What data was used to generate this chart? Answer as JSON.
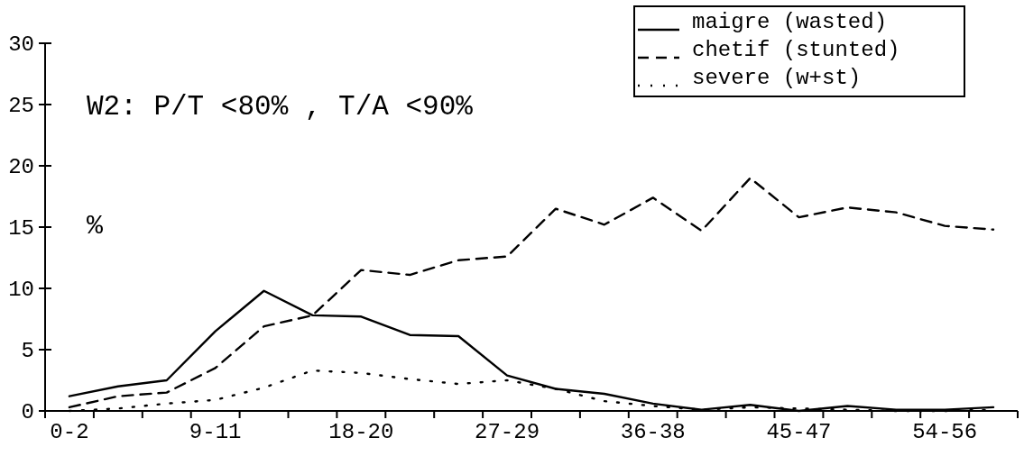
{
  "chart_data": {
    "type": "line",
    "ylabel": "%",
    "annotations": [
      "W2: P/T <80% , T/A <90%"
    ],
    "categories": [
      "0-2",
      null,
      null,
      "9-11",
      null,
      null,
      "18-20",
      null,
      null,
      "27-29",
      null,
      null,
      "36-38",
      null,
      null,
      "45-47",
      null,
      null,
      "54-56",
      null
    ],
    "series": [
      {
        "name": "maigre (wasted)",
        "color": "#000000",
        "line_style": "solid",
        "values": [
          1.2,
          2.0,
          2.5,
          6.5,
          9.8,
          7.8,
          7.7,
          6.2,
          6.1,
          2.9,
          1.8,
          1.4,
          0.6,
          0.1,
          0.5,
          0.0,
          0.4,
          0.1,
          0.1,
          0.3
        ]
      },
      {
        "name": "chetif (stunted)",
        "color": "#000000",
        "line_style": "dashed",
        "values": [
          0.3,
          1.2,
          1.5,
          3.5,
          6.9,
          7.8,
          11.5,
          11.1,
          12.3,
          12.6,
          16.5,
          15.2,
          17.4,
          14.7,
          19.0,
          15.8,
          16.6,
          16.2,
          15.1,
          14.8
        ]
      },
      {
        "name": "severe (w+st)",
        "color": "#000000",
        "line_style": "dotted",
        "values": [
          0.0,
          0.2,
          0.6,
          0.9,
          1.9,
          3.3,
          3.1,
          2.6,
          2.2,
          2.5,
          1.8,
          0.8,
          0.4,
          0.1,
          0.3,
          0.2,
          0.1,
          0.0,
          0.0,
          0.1
        ]
      }
    ],
    "ylim": [
      0,
      30
    ],
    "yticks": [
      0,
      5,
      10,
      15,
      20,
      25,
      30
    ],
    "legend": "top right",
    "marker": "none",
    "grid": false
  }
}
